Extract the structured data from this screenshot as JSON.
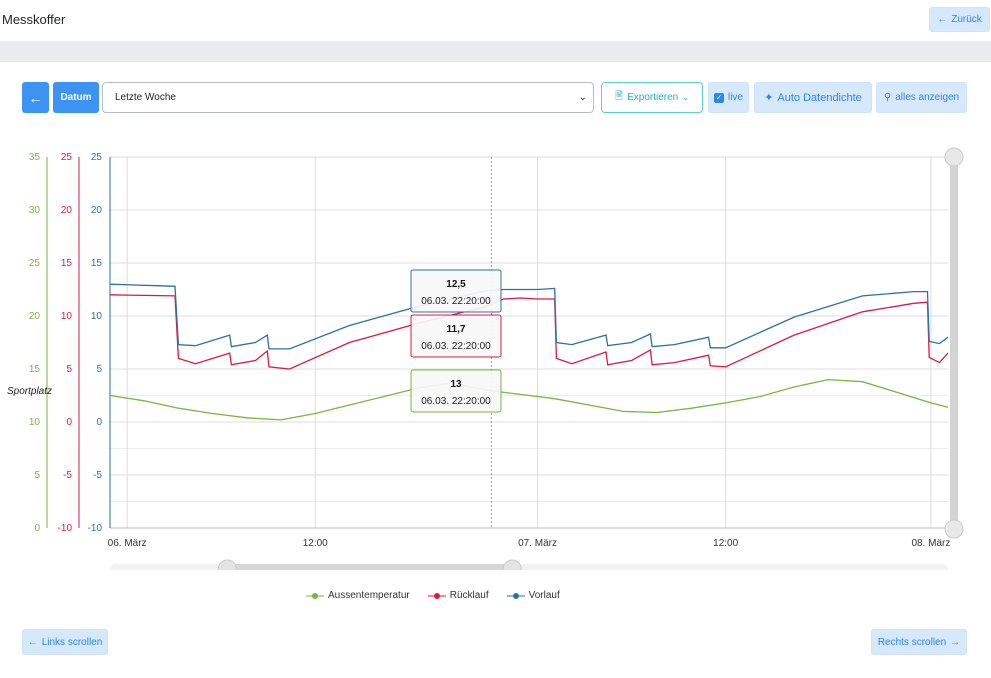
{
  "header": {
    "title": "Messkoffer",
    "back_label": "Zurück"
  },
  "toolbar": {
    "datum_label": "Datum",
    "range_value": "Letzte Woche",
    "export_label": "Exportieren",
    "live_label": "live",
    "live_checked": true,
    "auto_density_label": "Auto Datendichte",
    "show_all_label": "alles anzeigen"
  },
  "colors": {
    "green": "#7cb342",
    "red": "#d81b45",
    "blue": "#2e6fa8",
    "accent": "#3d93f2"
  },
  "side_label": "Sportplatz",
  "chart_data": {
    "type": "line",
    "x_range": [
      "06.03. 00:00",
      "08.03. 01:00"
    ],
    "x_ticks": [
      "06. März",
      "12:00",
      "07. März",
      "12:00",
      "08. März"
    ],
    "axes": [
      {
        "name": "green-axis",
        "color": "#7cb342",
        "ticks": [
          "35",
          "30",
          "25",
          "20",
          "15",
          "10",
          "5",
          "0"
        ],
        "ylim": [
          0,
          35
        ]
      },
      {
        "name": "red-axis",
        "color": "#d81b45",
        "ticks": [
          "25",
          "20",
          "15",
          "10",
          "5",
          "0",
          "-5",
          "-10"
        ],
        "ylim": [
          -10,
          25
        ]
      },
      {
        "name": "blue-axis",
        "color": "#2e6fa8",
        "ticks": [
          "25",
          "20",
          "15",
          "10",
          "5",
          "0",
          "-5",
          "-10"
        ],
        "ylim": [
          -10,
          25
        ]
      }
    ],
    "series": [
      {
        "name": "Aussentemperatur",
        "color": "#7cb342",
        "axis": 0,
        "points": [
          [
            0,
            12.5
          ],
          [
            2,
            12
          ],
          [
            4,
            11.3
          ],
          [
            6,
            10.8
          ],
          [
            8,
            10.4
          ],
          [
            10,
            10.2
          ],
          [
            12,
            10.8
          ],
          [
            14,
            11.6
          ],
          [
            16,
            12.4
          ],
          [
            18,
            13.2
          ],
          [
            20,
            13.7
          ],
          [
            22,
            13.0
          ],
          [
            24,
            12.6
          ],
          [
            26,
            12.2
          ],
          [
            28,
            11.6
          ],
          [
            30,
            11.0
          ],
          [
            32,
            10.9
          ],
          [
            34,
            11.3
          ],
          [
            36,
            11.8
          ],
          [
            38,
            12.4
          ],
          [
            40,
            13.3
          ],
          [
            42,
            14.0
          ],
          [
            44,
            13.8
          ],
          [
            46,
            12.8
          ],
          [
            48,
            11.8
          ],
          [
            49,
            11.4
          ]
        ]
      },
      {
        "name": "Rücklauf",
        "color": "#d81b45",
        "axis": 1,
        "points": [
          [
            0,
            12
          ],
          [
            3.8,
            11.9
          ],
          [
            4,
            6.0
          ],
          [
            5,
            5.5
          ],
          [
            7,
            6.5
          ],
          [
            7.1,
            5.4
          ],
          [
            8.5,
            5.8
          ],
          [
            9.2,
            6.7
          ],
          [
            9.3,
            5.2
          ],
          [
            10.5,
            5.0
          ],
          [
            14,
            7.5
          ],
          [
            18,
            9.3
          ],
          [
            22,
            10.9
          ],
          [
            23,
            11.6
          ],
          [
            24,
            11.7
          ],
          [
            25,
            11.6
          ],
          [
            26,
            11.6
          ],
          [
            26.1,
            6.0
          ],
          [
            27,
            5.5
          ],
          [
            29,
            6.6
          ],
          [
            29.1,
            5.4
          ],
          [
            30.5,
            5.8
          ],
          [
            31.6,
            6.8
          ],
          [
            31.7,
            5.4
          ],
          [
            33,
            5.6
          ],
          [
            35,
            6.3
          ],
          [
            35.1,
            5.3
          ],
          [
            36,
            5.2
          ],
          [
            40,
            8.2
          ],
          [
            44,
            10.4
          ],
          [
            47,
            11.2
          ],
          [
            47.8,
            11.3
          ],
          [
            47.9,
            6.1
          ],
          [
            48.5,
            5.6
          ],
          [
            49,
            6.5
          ]
        ]
      },
      {
        "name": "Vorlauf",
        "color": "#2e6fa8",
        "axis": 2,
        "points": [
          [
            0,
            13
          ],
          [
            3.8,
            12.8
          ],
          [
            4,
            7.3
          ],
          [
            5,
            7.2
          ],
          [
            7,
            8.2
          ],
          [
            7.1,
            7.1
          ],
          [
            8.5,
            7.5
          ],
          [
            9.2,
            8.2
          ],
          [
            9.3,
            6.9
          ],
          [
            10.5,
            6.9
          ],
          [
            14,
            9.1
          ],
          [
            18,
            10.9
          ],
          [
            22,
            12.4
          ],
          [
            23,
            12.5
          ],
          [
            24,
            12.5
          ],
          [
            25,
            12.5
          ],
          [
            26,
            12.6
          ],
          [
            26.1,
            7.5
          ],
          [
            27,
            7.3
          ],
          [
            29,
            8.2
          ],
          [
            29.1,
            7.2
          ],
          [
            30.5,
            7.5
          ],
          [
            31.6,
            8.3
          ],
          [
            31.7,
            7.1
          ],
          [
            33,
            7.3
          ],
          [
            35,
            8.0
          ],
          [
            35.1,
            7.0
          ],
          [
            36,
            7.0
          ],
          [
            40,
            9.9
          ],
          [
            44,
            11.9
          ],
          [
            47,
            12.3
          ],
          [
            47.8,
            12.3
          ],
          [
            47.9,
            7.6
          ],
          [
            48.5,
            7.4
          ],
          [
            49,
            8.0
          ]
        ]
      }
    ],
    "tooltips": [
      {
        "value": "12,5",
        "time": "06.03. 22:20:00",
        "series": "Vorlauf",
        "color": "#2e6fa8"
      },
      {
        "value": "11,7",
        "time": "06.03. 22:20:00",
        "series": "Rücklauf",
        "color": "#d81b45"
      },
      {
        "value": "13",
        "time": "06.03. 22:20:00",
        "series": "Aussentemperatur",
        "color": "#7cb342"
      }
    ],
    "grid": true,
    "legend_position": "bottom"
  },
  "navigator": {
    "window_start": 0.14,
    "window_end": 0.48
  },
  "footer": {
    "scroll_left_label": "Links scrollen",
    "scroll_right_label": "Rechts scrollen"
  }
}
